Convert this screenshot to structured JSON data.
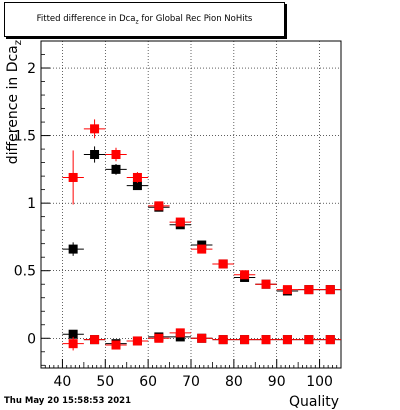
{
  "chart_data": {
    "type": "scatter",
    "title": "Fitted difference in Dca",
    "title_sub": "z",
    "title_rest": " for Global Rec Pion NoHits",
    "xlabel": "Quality",
    "ylabel": "difference in Dca",
    "ylabel_sub": "z",
    "xlim": [
      35,
      105
    ],
    "ylim": [
      -0.22,
      2.2
    ],
    "xticks": [
      40,
      50,
      60,
      70,
      80,
      90,
      100
    ],
    "yticks": [
      0,
      0.5,
      1,
      1.5,
      2
    ],
    "ytick_labels": [
      "0",
      "0.5",
      "1",
      "1.5",
      "2"
    ],
    "grid": true,
    "x_halfwidth": 2.5,
    "series": [
      {
        "color": "#000000",
        "points": [
          {
            "x": 42.5,
            "y": 0.66,
            "err": 0.05
          },
          {
            "x": 47.5,
            "y": 1.36,
            "err": 0.06
          },
          {
            "x": 52.5,
            "y": 1.25,
            "err": 0.04
          },
          {
            "x": 57.5,
            "y": 1.13,
            "err": 0.03
          },
          {
            "x": 62.5,
            "y": 0.97,
            "err": 0.02
          },
          {
            "x": 67.5,
            "y": 0.84,
            "err": 0.02
          },
          {
            "x": 72.5,
            "y": 0.69,
            "err": 0.02
          },
          {
            "x": 77.5,
            "y": 0.55,
            "err": 0.01
          },
          {
            "x": 82.5,
            "y": 0.45,
            "err": 0.01
          },
          {
            "x": 87.5,
            "y": 0.4,
            "err": 0.01
          },
          {
            "x": 92.5,
            "y": 0.35,
            "err": 0.01
          },
          {
            "x": 97.5,
            "y": 0.36,
            "err": 0.01
          },
          {
            "x": 102.5,
            "y": 0.36,
            "err": 0.01
          },
          {
            "x": 42.5,
            "y": 0.03,
            "err": 0.03
          },
          {
            "x": 47.5,
            "y": -0.01,
            "err": 0.03
          },
          {
            "x": 52.5,
            "y": -0.04,
            "err": 0.02
          },
          {
            "x": 57.5,
            "y": -0.02,
            "err": 0.02
          },
          {
            "x": 62.5,
            "y": 0.01,
            "err": 0.01
          },
          {
            "x": 67.5,
            "y": 0.01,
            "err": 0.01
          },
          {
            "x": 72.5,
            "y": 0.0,
            "err": 0.01
          },
          {
            "x": 77.5,
            "y": -0.01,
            "err": 0.01
          },
          {
            "x": 82.5,
            "y": -0.01,
            "err": 0.01
          },
          {
            "x": 87.5,
            "y": -0.01,
            "err": 0.01
          },
          {
            "x": 92.5,
            "y": -0.01,
            "err": 0.01
          },
          {
            "x": 97.5,
            "y": -0.01,
            "err": 0.01
          },
          {
            "x": 102.5,
            "y": -0.01,
            "err": 0.01
          }
        ]
      },
      {
        "color": "#ff0000",
        "points": [
          {
            "x": 42.5,
            "y": 1.19,
            "err": 0.2
          },
          {
            "x": 47.5,
            "y": 1.55,
            "err": 0.07
          },
          {
            "x": 52.5,
            "y": 1.36,
            "err": 0.05
          },
          {
            "x": 57.5,
            "y": 1.19,
            "err": 0.04
          },
          {
            "x": 62.5,
            "y": 0.98,
            "err": 0.03
          },
          {
            "x": 67.5,
            "y": 0.86,
            "err": 0.02
          },
          {
            "x": 72.5,
            "y": 0.66,
            "err": 0.02
          },
          {
            "x": 77.5,
            "y": 0.55,
            "err": 0.01
          },
          {
            "x": 82.5,
            "y": 0.47,
            "err": 0.01
          },
          {
            "x": 87.5,
            "y": 0.4,
            "err": 0.01
          },
          {
            "x": 92.5,
            "y": 0.36,
            "err": 0.01
          },
          {
            "x": 97.5,
            "y": 0.36,
            "err": 0.01
          },
          {
            "x": 102.5,
            "y": 0.36,
            "err": 0.01
          },
          {
            "x": 42.5,
            "y": -0.04,
            "err": 0.05
          },
          {
            "x": 47.5,
            "y": -0.01,
            "err": 0.03
          },
          {
            "x": 52.5,
            "y": -0.05,
            "err": 0.02
          },
          {
            "x": 57.5,
            "y": -0.02,
            "err": 0.02
          },
          {
            "x": 62.5,
            "y": 0.0,
            "err": 0.02
          },
          {
            "x": 67.5,
            "y": 0.04,
            "err": 0.02
          },
          {
            "x": 72.5,
            "y": 0.0,
            "err": 0.01
          },
          {
            "x": 77.5,
            "y": -0.01,
            "err": 0.01
          },
          {
            "x": 82.5,
            "y": -0.01,
            "err": 0.01
          },
          {
            "x": 87.5,
            "y": -0.01,
            "err": 0.01
          },
          {
            "x": 92.5,
            "y": -0.01,
            "err": 0.01
          },
          {
            "x": 97.5,
            "y": -0.01,
            "err": 0.01
          },
          {
            "x": 102.5,
            "y": -0.01,
            "err": 0.01
          }
        ]
      }
    ]
  },
  "footer": {
    "date": "Thu May 20 15:58:53 2021"
  }
}
